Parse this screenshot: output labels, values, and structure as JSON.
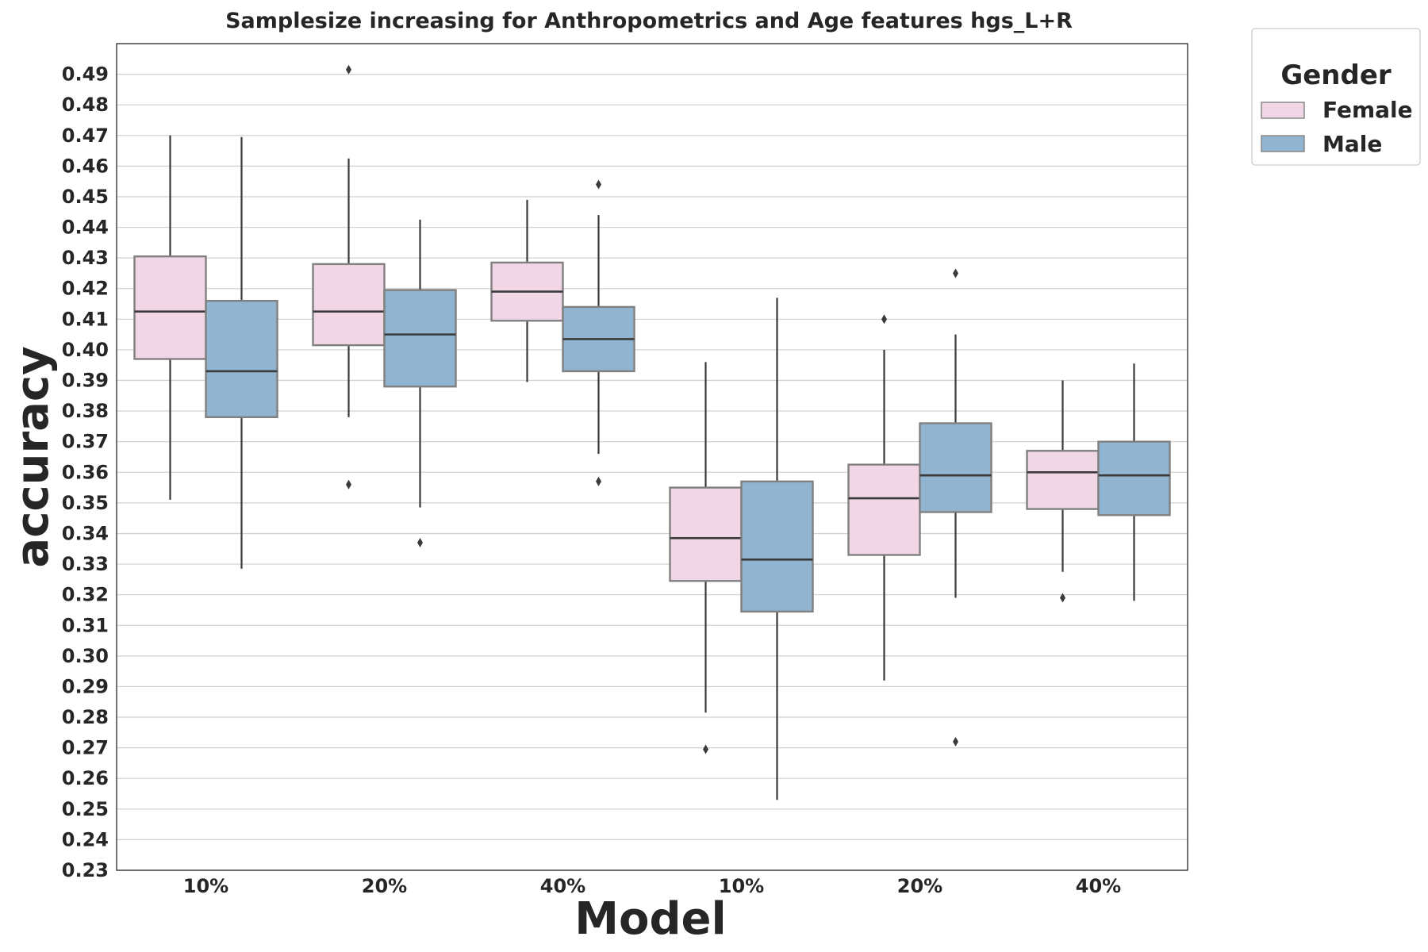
{
  "chart_data": {
    "type": "box",
    "title": "Samplesize increasing for Anthropometrics and Age features hgs_L+R",
    "xlabel": "Model",
    "ylabel": "accuracy",
    "categories": [
      "10%",
      "20%",
      "40%",
      "10%",
      "20%",
      "40%"
    ],
    "ylim": [
      0.23,
      0.5
    ],
    "yticks": [
      "0.23",
      "0.24",
      "0.25",
      "0.26",
      "0.27",
      "0.28",
      "0.29",
      "0.30",
      "0.31",
      "0.32",
      "0.33",
      "0.34",
      "0.35",
      "0.36",
      "0.37",
      "0.38",
      "0.39",
      "0.40",
      "0.41",
      "0.42",
      "0.43",
      "0.44",
      "0.45",
      "0.46",
      "0.47",
      "0.48",
      "0.49"
    ],
    "grid": "horizontal",
    "legend": {
      "title": "Gender",
      "placement": "outside-top-right"
    },
    "series": [
      {
        "name": "Female",
        "color": "#f1d7e6",
        "boxes": [
          {
            "whislo": 0.351,
            "q1": 0.397,
            "med": 0.4125,
            "q3": 0.4305,
            "whishi": 0.47,
            "fliers": []
          },
          {
            "whislo": 0.378,
            "q1": 0.4015,
            "med": 0.4125,
            "q3": 0.428,
            "whishi": 0.4625,
            "fliers": [
              0.356,
              0.4915
            ]
          },
          {
            "whislo": 0.3895,
            "q1": 0.4095,
            "med": 0.419,
            "q3": 0.4285,
            "whishi": 0.449,
            "fliers": []
          },
          {
            "whislo": 0.2815,
            "q1": 0.3245,
            "med": 0.3385,
            "q3": 0.355,
            "whishi": 0.396,
            "fliers": [
              0.2695
            ]
          },
          {
            "whislo": 0.292,
            "q1": 0.333,
            "med": 0.3515,
            "q3": 0.3625,
            "whishi": 0.4,
            "fliers": [
              0.41
            ]
          },
          {
            "whislo": 0.3275,
            "q1": 0.348,
            "med": 0.36,
            "q3": 0.367,
            "whishi": 0.39,
            "fliers": [
              0.319
            ]
          }
        ]
      },
      {
        "name": "Male",
        "color": "#91b4d0",
        "boxes": [
          {
            "whislo": 0.3285,
            "q1": 0.378,
            "med": 0.393,
            "q3": 0.416,
            "whishi": 0.4695,
            "fliers": []
          },
          {
            "whislo": 0.3485,
            "q1": 0.388,
            "med": 0.405,
            "q3": 0.4195,
            "whishi": 0.4425,
            "fliers": [
              0.337
            ]
          },
          {
            "whislo": 0.366,
            "q1": 0.393,
            "med": 0.4035,
            "q3": 0.414,
            "whishi": 0.444,
            "fliers": [
              0.357,
              0.454
            ]
          },
          {
            "whislo": 0.253,
            "q1": 0.3145,
            "med": 0.3315,
            "q3": 0.357,
            "whishi": 0.417,
            "fliers": []
          },
          {
            "whislo": 0.319,
            "q1": 0.347,
            "med": 0.359,
            "q3": 0.376,
            "whishi": 0.405,
            "fliers": [
              0.272,
              0.425
            ]
          },
          {
            "whislo": 0.318,
            "q1": 0.346,
            "med": 0.359,
            "q3": 0.37,
            "whishi": 0.3955,
            "fliers": []
          }
        ]
      }
    ]
  }
}
